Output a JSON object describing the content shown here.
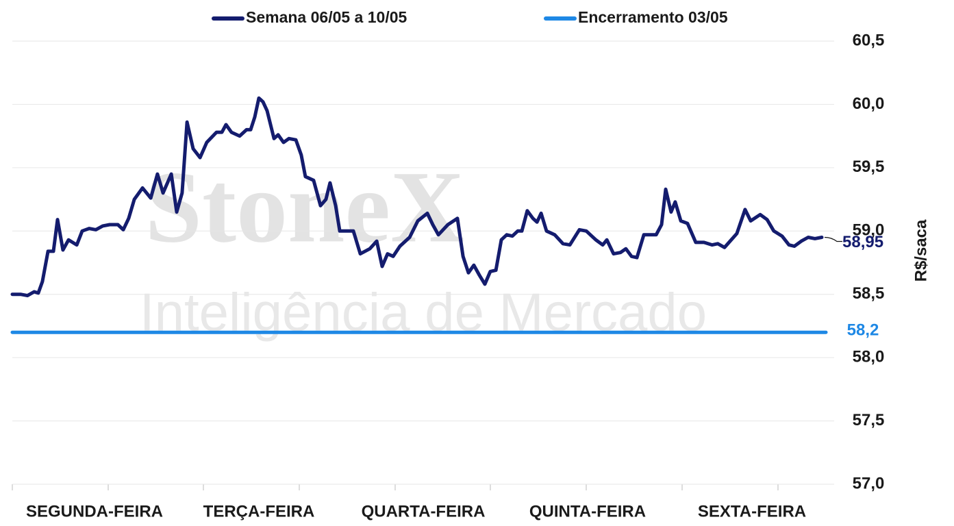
{
  "chart_data": {
    "type": "line",
    "watermark": [
      "StoneX",
      "Inteligência de Mercado"
    ],
    "y_label": "R$/saca",
    "xlim": [
      0,
      5
    ],
    "xticks": [
      {
        "value": 0.5,
        "label": "SEGUNDA-FEIRA"
      },
      {
        "value": 1.5,
        "label": "TERÇA-FEIRA"
      },
      {
        "value": 2.5,
        "label": "QUARTA-FEIRA"
      },
      {
        "value": 3.5,
        "label": "QUINTA-FEIRA"
      },
      {
        "value": 4.5,
        "label": "SEXTA-FEIRA"
      }
    ],
    "ylim": [
      57,
      60.5
    ],
    "yticks": [
      {
        "value": 57,
        "label": "57,0"
      },
      {
        "value": 57.5,
        "label": "57,5"
      },
      {
        "value": 58,
        "label": "58,0"
      },
      {
        "value": 58.5,
        "label": "58,5"
      },
      {
        "value": 59,
        "label": "59,0"
      },
      {
        "value": 59.5,
        "label": "59,5"
      },
      {
        "value": 60,
        "label": "60,0"
      },
      {
        "value": 60.5,
        "label": "60,5"
      }
    ],
    "grid": true,
    "legend": "top",
    "series": [
      {
        "name": "Semana 06/05 a 10/05",
        "color": "#141c6e",
        "end_label": "58,95",
        "x": [
          0,
          0.05,
          0.092,
          0.133,
          0.158,
          0.183,
          0.217,
          0.25,
          0.275,
          0.308,
          0.342,
          0.392,
          0.425,
          0.467,
          0.508,
          0.55,
          0.592,
          0.642,
          0.675,
          0.708,
          0.742,
          0.792,
          0.842,
          0.883,
          0.917,
          0.967,
          1.0,
          1.033,
          1.063,
          1.1,
          1.142,
          1.183,
          1.242,
          1.275,
          1.3,
          1.333,
          1.383,
          1.425,
          1.45,
          1.475,
          1.5,
          1.525,
          1.55,
          1.592,
          1.617,
          1.65,
          1.683,
          1.725,
          1.758,
          1.783,
          1.833,
          1.875,
          1.908,
          1.933,
          1.967,
          1.992,
          2.075,
          2.117,
          2.175,
          2.217,
          2.25,
          2.283,
          2.317,
          2.358,
          2.417,
          2.467,
          2.525,
          2.558,
          2.592,
          2.65,
          2.708,
          2.742,
          2.775,
          2.808,
          2.842,
          2.875,
          2.908,
          2.942,
          2.975,
          3.008,
          3.042,
          3.075,
          3.1,
          3.133,
          3.167,
          3.192,
          3.217,
          3.25,
          3.3,
          3.35,
          3.392,
          3.45,
          3.492,
          3.55,
          3.592,
          3.617,
          3.658,
          3.7,
          3.733,
          3.767,
          3.8,
          3.842,
          3.875,
          3.917,
          3.95,
          3.975,
          4.008,
          4.033,
          4.067,
          4.108,
          4.158,
          4.208,
          4.258,
          4.292,
          4.333,
          4.367,
          4.408,
          4.458,
          4.492,
          4.55,
          4.592,
          4.633,
          4.683,
          4.725,
          4.758,
          4.8,
          4.842,
          4.883,
          4.925
        ],
        "values": [
          58.5,
          58.5,
          58.49,
          58.52,
          58.51,
          58.6,
          58.84,
          58.84,
          59.09,
          58.85,
          58.93,
          58.89,
          59.0,
          59.02,
          59.01,
          59.04,
          59.05,
          59.05,
          59.01,
          59.1,
          59.25,
          59.34,
          59.26,
          59.45,
          59.3,
          59.45,
          59.15,
          59.3,
          59.86,
          59.65,
          59.58,
          59.7,
          59.78,
          59.78,
          59.84,
          59.78,
          59.75,
          59.8,
          59.8,
          59.9,
          60.05,
          60.02,
          59.95,
          59.73,
          59.76,
          59.7,
          59.73,
          59.72,
          59.6,
          59.43,
          59.4,
          59.2,
          59.25,
          59.38,
          59.2,
          59.0,
          59.0,
          58.82,
          58.86,
          58.92,
          58.72,
          58.82,
          58.8,
          58.88,
          58.95,
          59.08,
          59.14,
          59.05,
          58.97,
          59.05,
          59.1,
          58.8,
          58.67,
          58.73,
          58.65,
          58.58,
          58.68,
          58.69,
          58.93,
          58.97,
          58.96,
          59.0,
          59.0,
          59.16,
          59.1,
          59.07,
          59.14,
          59.0,
          58.97,
          58.9,
          58.89,
          59.01,
          59.0,
          58.93,
          58.89,
          58.93,
          58.82,
          58.83,
          58.86,
          58.8,
          58.79,
          58.97,
          58.97,
          58.97,
          59.05,
          59.33,
          59.15,
          59.23,
          59.08,
          59.06,
          58.91,
          58.91,
          58.89,
          58.9,
          58.87,
          58.92,
          58.98,
          59.17,
          59.08,
          59.13,
          59.09,
          59.0,
          58.96,
          58.89,
          58.88,
          58.92,
          58.95,
          58.94,
          58.95
        ]
      },
      {
        "name": "Encerramento 03/05",
        "color": "#1e88e5",
        "end_label": "58,2",
        "x": [
          0,
          4.95
        ],
        "values": [
          58.2,
          58.2
        ]
      }
    ]
  }
}
